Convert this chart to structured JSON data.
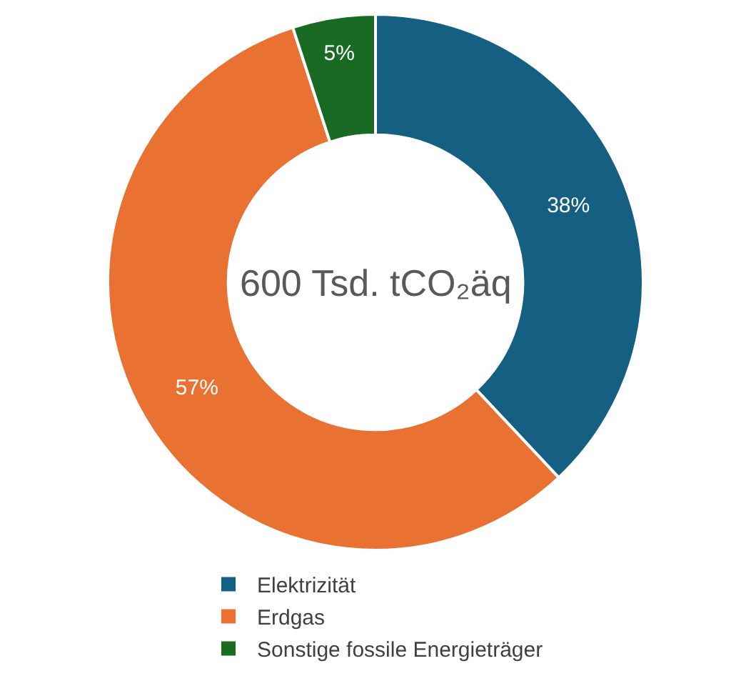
{
  "chart_data": {
    "type": "donut",
    "categories": [
      "Elektrizität",
      "Erdgas",
      "Sonstige fossile Energieträger"
    ],
    "values": [
      38,
      57,
      5
    ],
    "value_labels": [
      "38%",
      "57%",
      "5%"
    ],
    "colors": [
      "#156082",
      "#e97132",
      "#196b24"
    ],
    "annotations": [
      "600 Tsd. tCO₂äq"
    ],
    "legend": "bottom"
  }
}
